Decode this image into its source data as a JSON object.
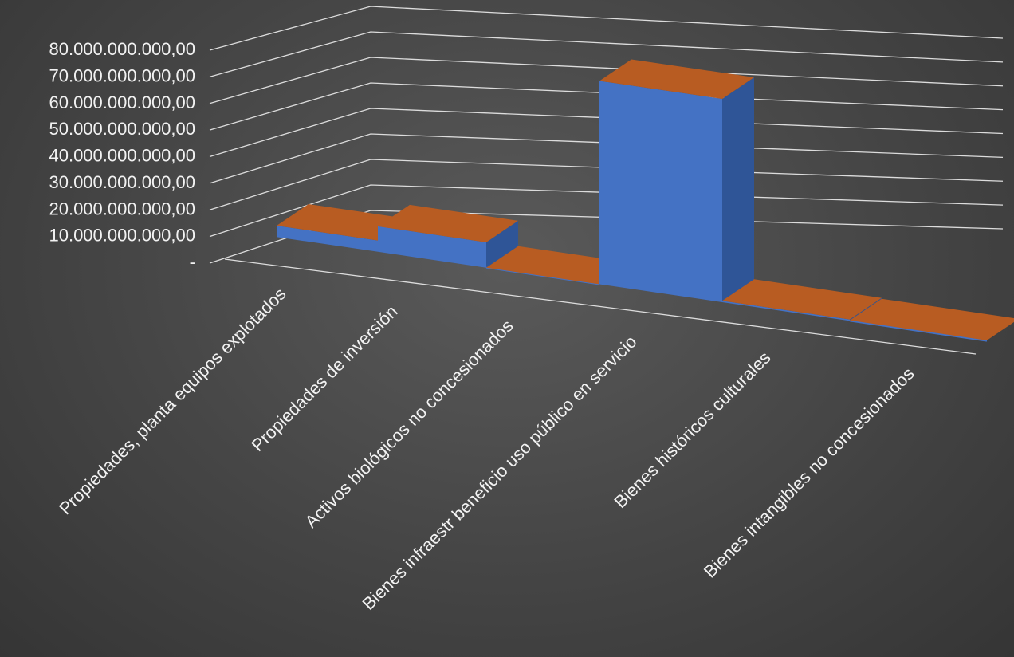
{
  "chart_data": {
    "type": "bar",
    "title": "",
    "xlabel": "",
    "ylabel": "",
    "ylim": [
      0,
      80000000000
    ],
    "y_ticks": [
      0,
      10000000000,
      20000000000,
      30000000000,
      40000000000,
      50000000000,
      60000000000,
      70000000000,
      80000000000
    ],
    "y_tick_labels": [
      "-",
      "10.000.000.000,00",
      "20.000.000.000,00",
      "30.000.000.000,00",
      "40.000.000.000,00",
      "50.000.000.000,00",
      "60.000.000.000,00",
      "70.000.000.000,00",
      "80.000.000.000,00"
    ],
    "categories": [
      "Propiedades, planta  equipos explotados",
      "Propiedades de inversión",
      "Activos biológicos no concesionados",
      "Bienes infraestr beneficio uso público en servicio",
      "Bienes históricos  culturales",
      "Bienes intangibles no concesionados"
    ],
    "values": [
      4000000000,
      9000000000,
      0,
      72000000000,
      500000000,
      200000000
    ],
    "grid": true,
    "legend": "none",
    "colors": {
      "bar_front": "#4472c4",
      "bar_side": "#2f5597",
      "bar_top": "#b85c22",
      "background": "#474747",
      "grid": "#dcdcdc",
      "text": "#f2f2f2"
    }
  }
}
